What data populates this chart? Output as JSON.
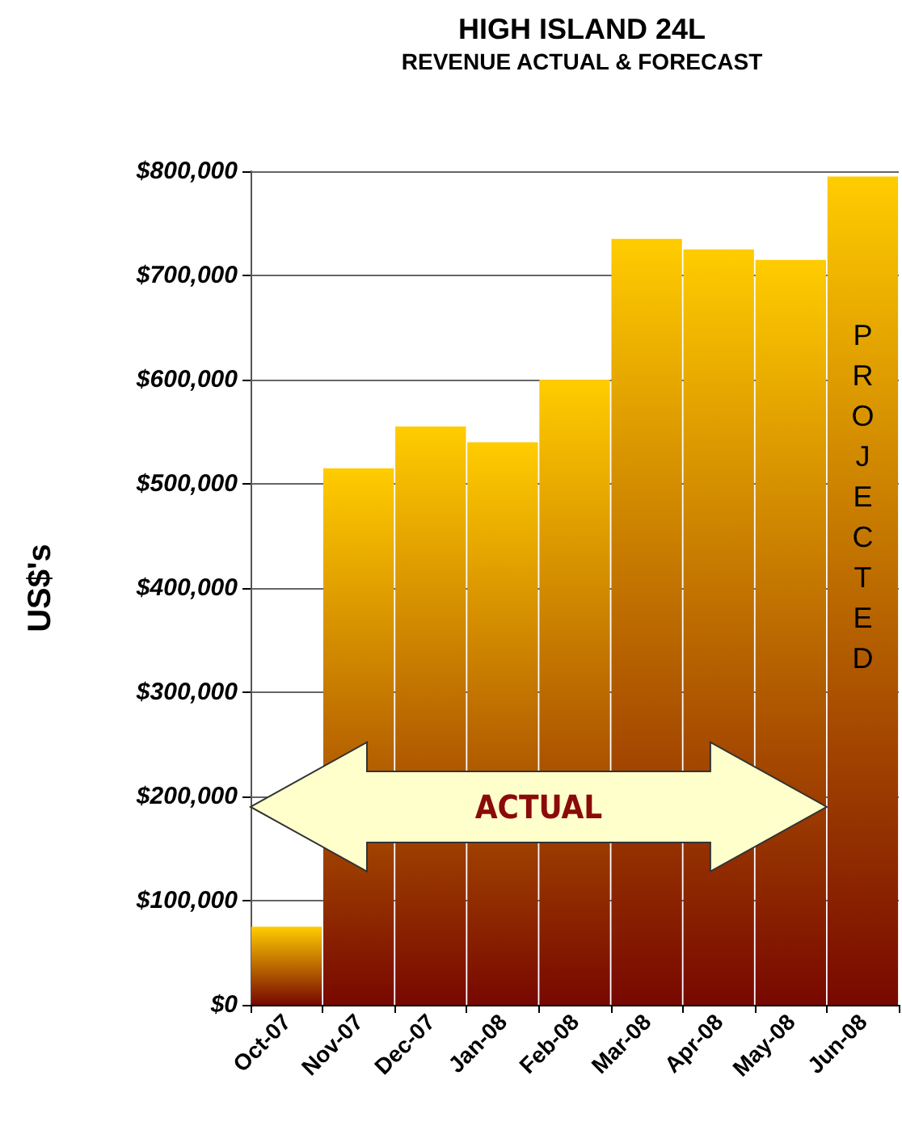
{
  "chart_data": {
    "type": "bar",
    "title": "HIGH ISLAND 24L",
    "subtitle": "REVENUE ACTUAL & FORECAST",
    "ylabel": "US$'s",
    "categories": [
      "Oct-07",
      "Nov-07",
      "Dec-07",
      "Jan-08",
      "Feb-08",
      "Mar-08",
      "Apr-08",
      "May-08",
      "Jun-08"
    ],
    "values": [
      75000,
      515000,
      555000,
      540000,
      600000,
      735000,
      725000,
      715000,
      795000
    ],
    "color": "#ffcc00",
    "ylim": [
      0,
      800000
    ],
    "yticks": [
      {
        "value": 0,
        "label": "$0"
      },
      {
        "value": 100000,
        "label": "$100,000"
      },
      {
        "value": 200000,
        "label": "$200,000"
      },
      {
        "value": 300000,
        "label": "$300,000"
      },
      {
        "value": 400000,
        "label": "$400,000"
      },
      {
        "value": 500000,
        "label": "$500,000"
      },
      {
        "value": 600000,
        "label": "$600,000"
      },
      {
        "value": 700000,
        "label": "$700,000"
      },
      {
        "value": 800000,
        "label": "$800,000"
      }
    ],
    "grid": "y",
    "annotations": [
      "ACTUAL",
      "PROJECTED"
    ]
  }
}
